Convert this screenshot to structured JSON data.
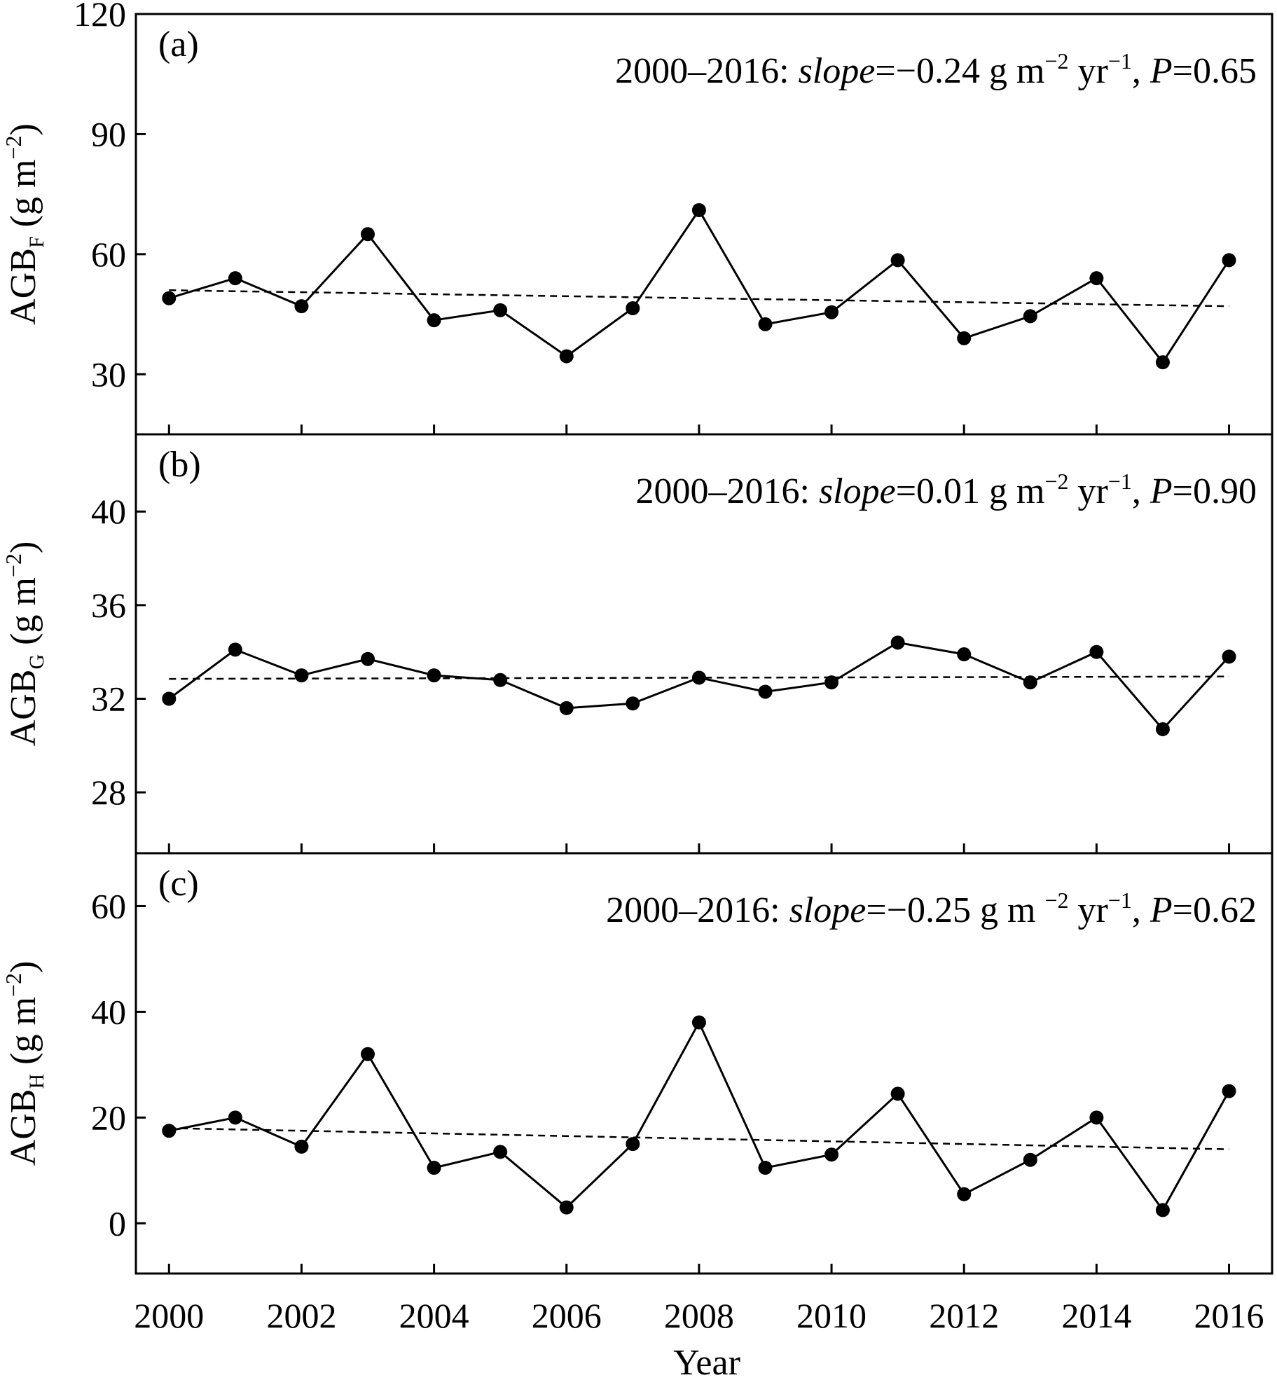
{
  "chart_data": [
    {
      "type": "line",
      "panel_label": "(a)",
      "annotation": {
        "prefix": "2000–2016: ",
        "slope_word": "slope",
        "eq": "=",
        "value": "−0.24 g m",
        "unit_exp1": "−2",
        "unit_mid": " yr",
        "unit_exp2": "−1",
        "comma": ", ",
        "p_word": "P",
        "p_value": "=0.65"
      },
      "ylabel": {
        "base": "AGB",
        "subscript": "F",
        "unit": " (g m",
        "unit_exp": "−2",
        "unit_close": ")"
      },
      "ylim": [
        15,
        120
      ],
      "yticks": [
        30,
        60,
        90,
        120
      ],
      "x": [
        2000,
        2001,
        2002,
        2003,
        2004,
        2005,
        2006,
        2007,
        2008,
        2009,
        2010,
        2011,
        2012,
        2013,
        2014,
        2015,
        2016
      ],
      "series": [
        {
          "values": [
            49,
            54,
            47,
            65,
            43.5,
            46,
            34.5,
            46.5,
            71,
            42.5,
            45.5,
            58.5,
            39,
            44.5,
            54,
            33,
            58.5
          ]
        }
      ],
      "trend": {
        "start": [
          2000,
          51
        ],
        "end": [
          2016,
          47
        ]
      }
    },
    {
      "type": "line",
      "panel_label": "(b)",
      "annotation": {
        "prefix": "2000–2016: ",
        "slope_word": "slope",
        "eq": "=",
        "value": "0.01 g m",
        "unit_exp1": "−2",
        "unit_mid": " yr",
        "unit_exp2": "−1",
        "comma": ", ",
        "p_word": "P",
        "p_value": "=0.90"
      },
      "ylabel": {
        "base": "AGB",
        "subscript": "G",
        "unit": " (g m",
        "unit_exp": "−2",
        "unit_close": ")"
      },
      "ylim": [
        25.4,
        43.3
      ],
      "yticks": [
        28,
        32,
        36,
        40
      ],
      "x": [
        2000,
        2001,
        2002,
        2003,
        2004,
        2005,
        2006,
        2007,
        2008,
        2009,
        2010,
        2011,
        2012,
        2013,
        2014,
        2015,
        2016
      ],
      "series": [
        {
          "values": [
            32.0,
            34.1,
            33.0,
            33.7,
            33.0,
            32.8,
            31.6,
            31.8,
            32.9,
            32.3,
            32.7,
            34.4,
            33.9,
            32.7,
            34.0,
            30.7,
            33.8
          ]
        }
      ],
      "trend": {
        "start": [
          2000,
          32.85
        ],
        "end": [
          2016,
          32.95
        ]
      }
    },
    {
      "type": "line",
      "panel_label": "(c)",
      "annotation": {
        "prefix": "2000–2016: ",
        "slope_word": "slope",
        "eq": "=",
        "value": "−0.25 g m ",
        "unit_exp1": "−2",
        "unit_mid": " yr",
        "unit_exp2": "−1",
        "comma": ", ",
        "p_word": "P",
        "p_value": "=0.62"
      },
      "ylabel": {
        "base": "AGB",
        "subscript": "H",
        "unit": " (g m",
        "unit_exp": "−2",
        "unit_close": ")"
      },
      "ylim": [
        -9.5,
        70
      ],
      "yticks": [
        0,
        20,
        40,
        60
      ],
      "x": [
        2000,
        2001,
        2002,
        2003,
        2004,
        2005,
        2006,
        2007,
        2008,
        2009,
        2010,
        2011,
        2012,
        2013,
        2014,
        2015,
        2016
      ],
      "series": [
        {
          "values": [
            17.5,
            20,
            14.5,
            32,
            10.5,
            13.5,
            3,
            15,
            38,
            10.5,
            13,
            24.5,
            5.5,
            12,
            20,
            2.5,
            25
          ]
        }
      ],
      "trend": {
        "start": [
          2000,
          18
        ],
        "end": [
          2016,
          14
        ]
      }
    }
  ],
  "xaxis": {
    "label": "Year",
    "ticks": [
      2000,
      2002,
      2004,
      2006,
      2008,
      2010,
      2012,
      2014,
      2016
    ],
    "range": [
      1999.5,
      2016.65
    ]
  },
  "colors": {
    "line": "#000000",
    "background": "#ffffff"
  }
}
